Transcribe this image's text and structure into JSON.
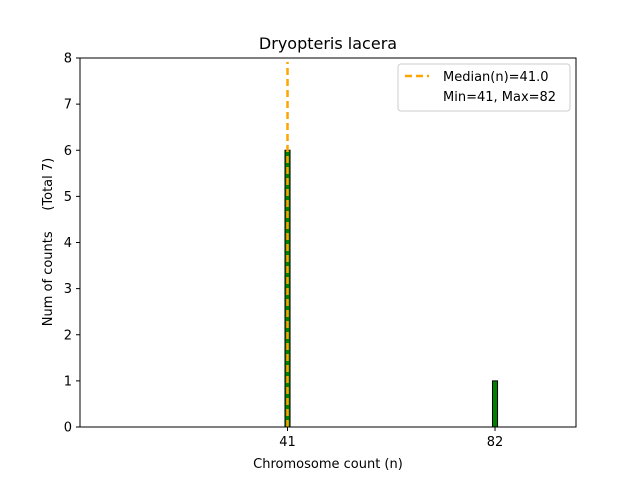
{
  "chart_data": {
    "type": "bar",
    "title": "Dryopteris lacera",
    "xlabel": "Chromosome count (n)",
    "ylabel": "Num of counts     (Total 7)",
    "xlim": [
      0,
      98
    ],
    "ylim": [
      0,
      8
    ],
    "yticks": [
      0,
      1,
      2,
      3,
      4,
      5,
      6,
      7,
      8
    ],
    "xticks": [
      41,
      82
    ],
    "bars": [
      {
        "x": 41,
        "value": 6
      },
      {
        "x": 82,
        "value": 1
      }
    ],
    "bar_width": 1,
    "bar_color": "#008000",
    "bar_edge_color": "#000000",
    "median": 41.0,
    "median_color": "#FFA500",
    "legend": {
      "position": "top-right",
      "entries": [
        "Median(n)=41.0",
        "Min=41, Max=82"
      ]
    },
    "grid": false
  }
}
